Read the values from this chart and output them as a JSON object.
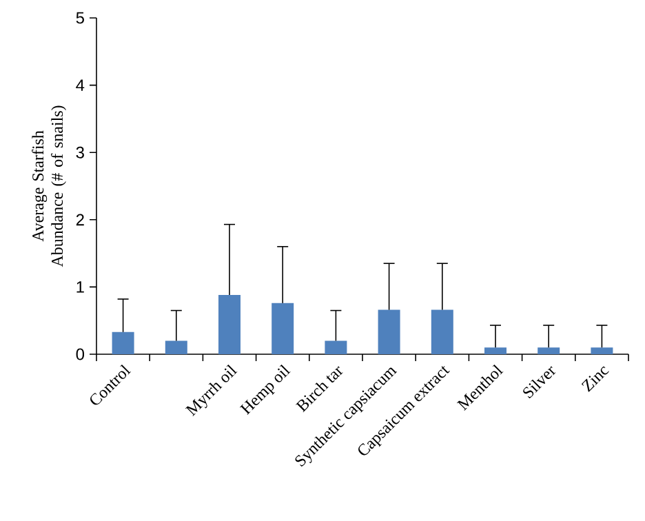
{
  "chart_data": {
    "type": "bar",
    "ylabel": "Average Starfish Abundance (# of snails)",
    "categories": [
      "Control",
      null,
      "Myrrh oil",
      "Hemp oil",
      "Birch tar",
      "Synthetic capsiacum",
      "Capsaicum extract",
      "Menthol",
      "Silver",
      "Zinc"
    ],
    "values": [
      0.33,
      0.2,
      0.88,
      0.76,
      0.2,
      0.66,
      0.66,
      0.1,
      0.1,
      0.1
    ],
    "errors": [
      [
        0.33,
        0.82
      ],
      [
        0.2,
        0.65
      ],
      [
        0.88,
        1.93
      ],
      [
        0.76,
        1.6
      ],
      [
        0.2,
        0.65
      ],
      [
        0.66,
        1.35
      ],
      [
        0.66,
        1.35
      ],
      [
        0.1,
        0.43
      ],
      [
        0.1,
        0.43
      ],
      [
        0.1,
        0.43
      ]
    ],
    "color": "#4f81bd",
    "ylim": [
      0,
      5
    ],
    "yticks": [
      0,
      1,
      2,
      3,
      4,
      5
    ],
    "grid": false
  }
}
